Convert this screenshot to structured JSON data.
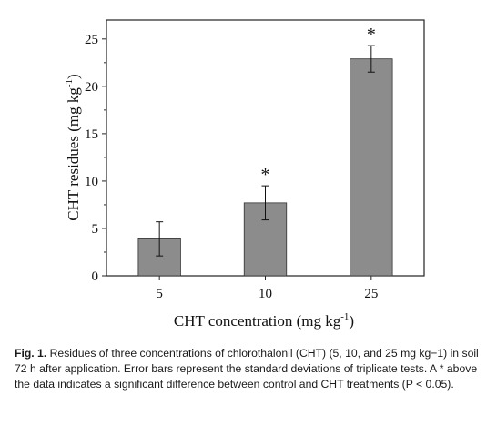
{
  "chart_data": {
    "type": "bar",
    "categories": [
      "5",
      "10",
      "25"
    ],
    "values": [
      3.9,
      7.7,
      22.9
    ],
    "errors": [
      1.8,
      1.8,
      1.4
    ],
    "significance": [
      "",
      "*",
      "*"
    ],
    "xlabel": "CHT concentration (mg kg",
    "xlabel_sup": "-1",
    "xlabel_close": ")",
    "ylabel": "CHT residues (mg kg",
    "ylabel_sup": "-1",
    "ylabel_close": ")",
    "ylim": [
      0,
      27
    ],
    "yticks": [
      0,
      5,
      10,
      15,
      20,
      25
    ],
    "bar_color": "#8c8c8c",
    "grid": false,
    "legend": "none"
  },
  "caption": {
    "label": "Fig. 1.",
    "text": "Residues of three concentrations of chlorothalonil (CHT) (5, 10, and 25 mg kg−1) in soil 72 h after application. Error bars represent the standard deviations of triplicate tests. A * above the data indicates a significant difference between control and CHT treatments (P < 0.05)."
  }
}
